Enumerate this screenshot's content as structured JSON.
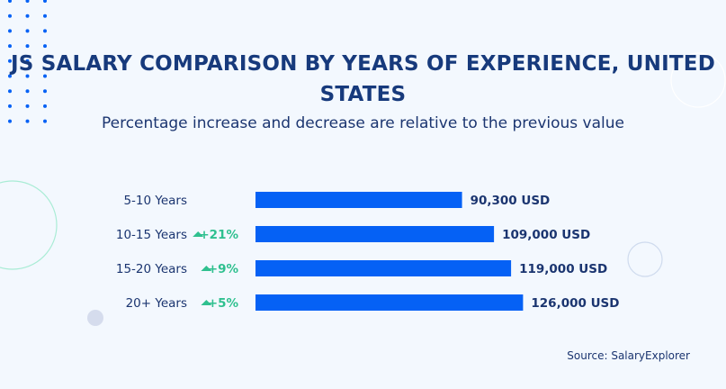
{
  "colors": {
    "background": "#f3f8fe",
    "bar": "#0561f5",
    "text": "#1b3570",
    "increase": "#2fc08f"
  },
  "chart_data": {
    "type": "bar",
    "orientation": "horizontal",
    "title": "JS SALARY COMPARISON BY YEARS OF EXPERIENCE, UNITED STATES",
    "subtitle": "Percentage increase and decrease are relative to the previous value",
    "categories": [
      "5-10 Years",
      "10-15 Years",
      "15-20 Years",
      "20+ Years"
    ],
    "values": [
      90300,
      109000,
      119000,
      126000
    ],
    "value_labels": [
      "90,300 USD",
      "109,000 USD",
      "119,000 USD",
      "126,000 USD"
    ],
    "changes": [
      "",
      "+21%",
      "+9%",
      "+5%"
    ],
    "change_icon": "triangle-up-icon",
    "source": "Source: SalaryExplorer",
    "grid": false
  }
}
